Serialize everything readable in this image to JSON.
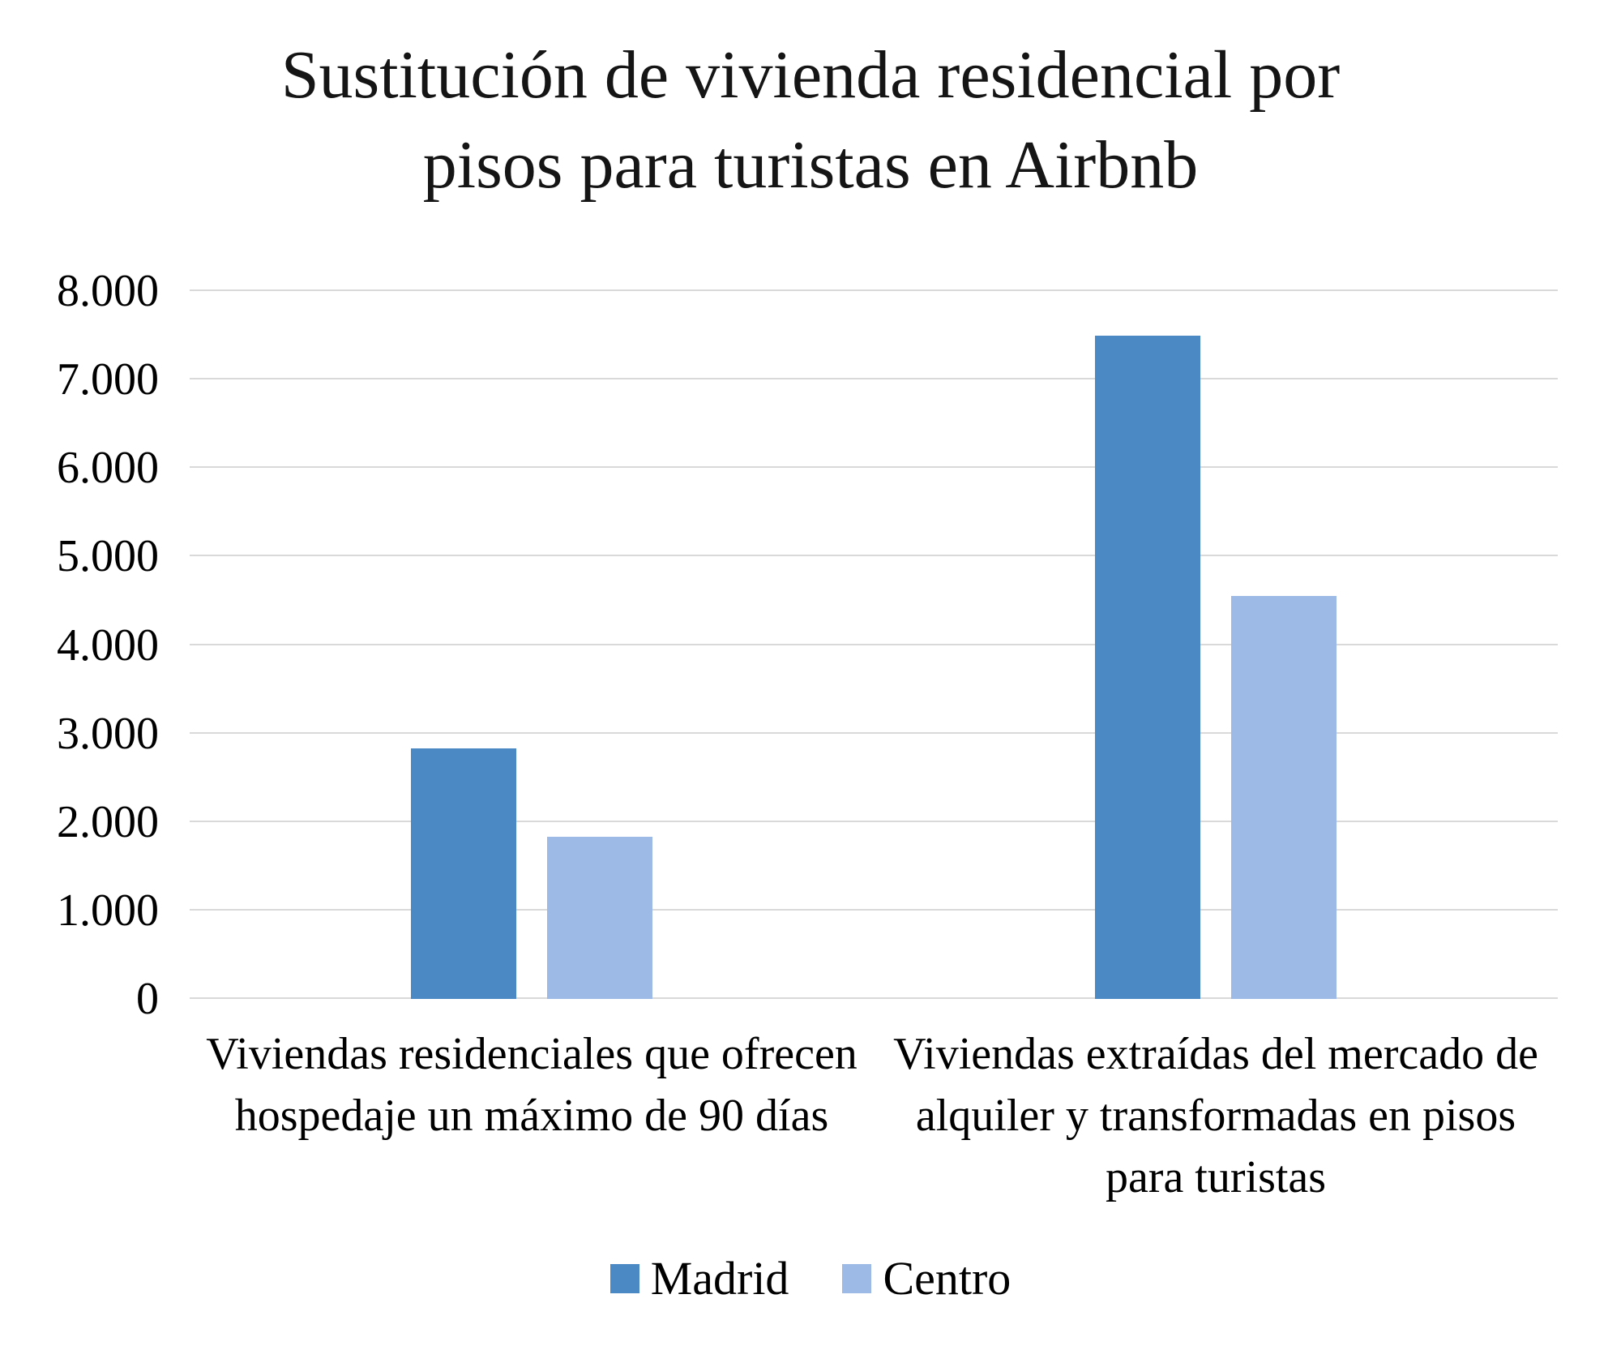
{
  "title": "Sustitución de vivienda residencial por pisos para turistas en Airbnb",
  "title_lines": [
    "Sustitución de vivienda residencial por",
    "pisos para turistas en Airbnb"
  ],
  "chart_data": {
    "type": "bar",
    "title": "Sustitución de vivienda residencial por pisos para turistas en Airbnb",
    "categories": [
      "Viviendas residenciales que ofrecen hospedaje un máximo de 90 días",
      "Viviendas extraídas del mercado de alquiler y transformadas en pisos para turistas"
    ],
    "series": [
      {
        "name": "Madrid",
        "color": "#4A89C4",
        "values": [
          2830,
          7500
        ]
      },
      {
        "name": "Centro",
        "color": "#9CBAE5",
        "values": [
          1830,
          4550
        ]
      }
    ],
    "xlabel": "",
    "ylabel": "",
    "ylim": [
      0,
      8000
    ],
    "ytick_step": 1000,
    "ytick_labels": [
      "0",
      "1.000",
      "2.000",
      "3.000",
      "4.000",
      "5.000",
      "6.000",
      "7.000",
      "8.000"
    ],
    "grid": true,
    "gridline_color": "#D9D9D9",
    "legend_position": "bottom",
    "background_color": "#FFFFFF",
    "text_color": "#000000"
  }
}
